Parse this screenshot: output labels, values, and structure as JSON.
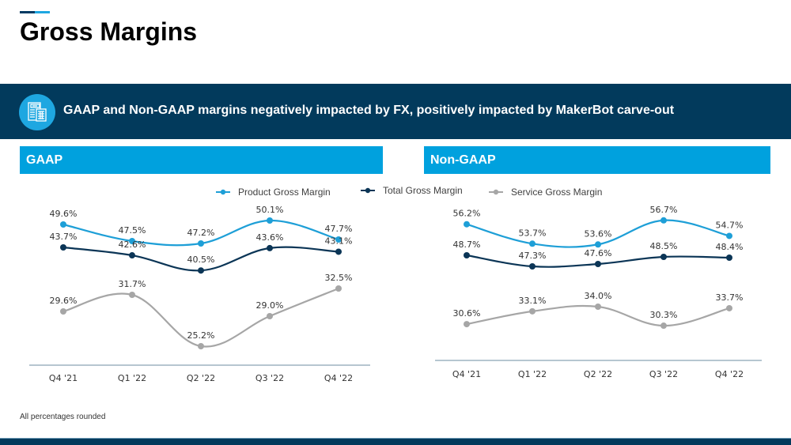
{
  "page": {
    "title": "Gross Margins",
    "banner_text": "GAAP and Non-GAAP margins negatively impacted by FX, positively impacted by MakerBot carve-out",
    "banner_icon": "calculator-document-icon",
    "footnote": "All percentages rounded"
  },
  "colors": {
    "accent_dark": "#003a63",
    "accent_light": "#1ea7e1",
    "banner": "#023a5c",
    "section_header": "#00a1de",
    "product": "#1e9fd7",
    "total": "#0b3556",
    "service": "#a6a6a6",
    "axis": "#8aa4b5"
  },
  "legend": [
    {
      "name": "Product Gross Margin",
      "series": "product"
    },
    {
      "name": "Total Gross Margin",
      "series": "total"
    },
    {
      "name": "Service Gross Margin",
      "series": "service"
    }
  ],
  "chart_data": [
    {
      "type": "line",
      "title": "GAAP",
      "categories": [
        "Q4 '21",
        "Q1 '22",
        "Q2 '22",
        "Q3 '22",
        "Q4 '22"
      ],
      "series": [
        {
          "name": "Product Gross Margin",
          "key": "product",
          "values": [
            49.6,
            47.5,
            47.2,
            50.1,
            47.7
          ],
          "labels": [
            "49.6%",
            "47.5%",
            "47.2%",
            "50.1%",
            "47.7%"
          ]
        },
        {
          "name": "Total Gross Margin",
          "key": "total",
          "values": [
            43.7,
            42.6,
            40.5,
            43.6,
            43.1
          ],
          "labels": [
            "43.7%",
            "42.6%",
            "40.5%",
            "43.6%",
            "43.1%"
          ]
        },
        {
          "name": "Service Gross Margin",
          "key": "service",
          "values": [
            29.6,
            31.7,
            25.2,
            29.0,
            32.5
          ],
          "labels": [
            "29.6%",
            "31.7%",
            "25.2%",
            "29.0%",
            "32.5%"
          ]
        }
      ],
      "xlabel": "",
      "ylabel": "",
      "grid": false,
      "legend": "top"
    },
    {
      "type": "line",
      "title": "Non-GAAP",
      "categories": [
        "Q4 '21",
        "Q1 '22",
        "Q2 '22",
        "Q3 '22",
        "Q4 '22"
      ],
      "series": [
        {
          "name": "Product Gross Margin",
          "key": "product",
          "values": [
            56.2,
            53.7,
            53.6,
            56.7,
            54.7
          ],
          "labels": [
            "56.2%",
            "53.7%",
            "53.6%",
            "56.7%",
            "54.7%"
          ]
        },
        {
          "name": "Total Gross Margin",
          "key": "total",
          "values": [
            48.7,
            47.3,
            47.6,
            48.5,
            48.4
          ],
          "labels": [
            "48.7%",
            "47.3%",
            "47.6%",
            "48.5%",
            "48.4%"
          ]
        },
        {
          "name": "Service Gross Margin",
          "key": "service",
          "values": [
            30.6,
            33.1,
            34.0,
            30.3,
            33.7
          ],
          "labels": [
            "30.6%",
            "33.1%",
            "34.0%",
            "30.3%",
            "33.7%"
          ]
        }
      ],
      "xlabel": "",
      "ylabel": "",
      "grid": false,
      "legend": "top"
    }
  ]
}
